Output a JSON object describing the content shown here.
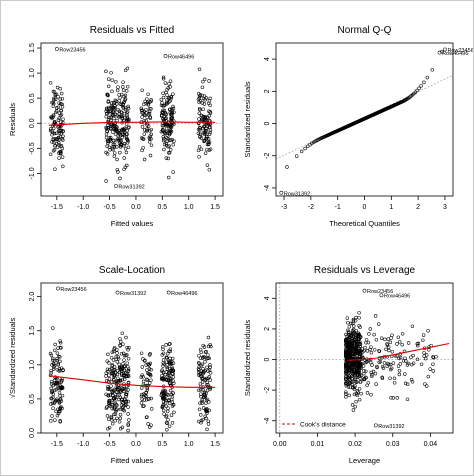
{
  "chart_data": [
    {
      "type": "scatter",
      "title": "Residuals vs Fitted",
      "xlabel": "Fitted values",
      "ylabel": "Residuals",
      "xlim": [
        -1.8,
        1.65
      ],
      "ylim": [
        -1.45,
        1.6
      ],
      "xticks": [
        -1.5,
        -1.0,
        -0.5,
        0.0,
        0.5,
        1.0,
        1.5
      ],
      "xticklabels": [
        "-1.5",
        "-1.0",
        "-0.5",
        "0.0",
        "0.5",
        "1.0",
        "1.5"
      ],
      "yticks": [
        -1.0,
        -0.5,
        0.0,
        0.5,
        1.0,
        1.5
      ],
      "yticklabels": [
        "-1.0",
        "-0.5",
        "0.0",
        "0.5",
        "1.0",
        "1.5"
      ],
      "clusters": [
        {
          "x_center": -1.5,
          "x_spread": 0.12,
          "count": 110,
          "y_sd": 0.38
        },
        {
          "x_center": -0.35,
          "x_spread": 0.22,
          "count": 230,
          "y_sd": 0.38
        },
        {
          "x_center": 0.2,
          "x_spread": 0.1,
          "count": 60,
          "y_sd": 0.3
        },
        {
          "x_center": 0.6,
          "x_spread": 0.12,
          "count": 140,
          "y_sd": 0.38
        },
        {
          "x_center": 1.3,
          "x_spread": 0.12,
          "count": 110,
          "y_sd": 0.35
        }
      ],
      "trend_line": {
        "color": "#dd0000",
        "x": [
          -1.65,
          -1.0,
          -0.4,
          0.0,
          0.6,
          1.0,
          1.5
        ],
        "y": [
          -0.04,
          0.0,
          0.02,
          0.02,
          0.03,
          0.02,
          0.02
        ]
      },
      "reference_line": {
        "y": 0.0,
        "style": "dotted",
        "color": "#999999"
      },
      "outliers": [
        {
          "label": "Row23456",
          "x": -1.5,
          "y": 1.48
        },
        {
          "label": "Row46496",
          "x": 0.56,
          "y": 1.34
        },
        {
          "label": "Row31392",
          "x": -0.38,
          "y": -1.25
        }
      ]
    },
    {
      "type": "scatter",
      "title": "Normal Q-Q",
      "xlabel": "Theoretical Quantiles",
      "ylabel": "Standardized residuals",
      "xlim": [
        -3.3,
        3.3
      ],
      "ylim": [
        -4.5,
        5.0
      ],
      "xticks": [
        -3,
        -2,
        -1,
        0,
        1,
        2,
        3
      ],
      "xticklabels": [
        "-3",
        "-2",
        "-1",
        "0",
        "1",
        "2",
        "3"
      ],
      "yticks": [
        -4,
        -2,
        0,
        2,
        4
      ],
      "yticklabels": [
        "-4",
        "-2",
        "0",
        "2",
        "4"
      ],
      "n_points": 260,
      "reference_line": {
        "x": [
          -3.3,
          3.3
        ],
        "y": [
          -2.2,
          3.0
        ],
        "style": "dotted",
        "color": "#999999"
      },
      "outliers": [
        {
          "label": "Row23456",
          "x": 3.0,
          "y": 4.6
        },
        {
          "label": "Row46496",
          "x": 2.8,
          "y": 4.4
        },
        {
          "label": "Row31392",
          "x": -3.1,
          "y": -4.3
        }
      ]
    },
    {
      "type": "scatter",
      "title": "Scale-Location",
      "xlabel": "Fitted values",
      "ylabel": "√Standardized residuals",
      "xlim": [
        -1.8,
        1.65
      ],
      "ylim": [
        0.0,
        2.2
      ],
      "xticks": [
        -1.5,
        -1.0,
        -0.5,
        0.0,
        0.5,
        1.0,
        1.5
      ],
      "xticklabels": [
        "-1.5",
        "-1.0",
        "-0.5",
        "0.0",
        "0.5",
        "1.0",
        "1.5"
      ],
      "yticks": [
        0.0,
        0.5,
        1.0,
        1.5,
        2.0
      ],
      "yticklabels": [
        "0.0",
        "0.5",
        "1.0",
        "1.5",
        "2.0"
      ],
      "clusters": [
        {
          "x_center": -1.5,
          "x_spread": 0.12,
          "count": 110
        },
        {
          "x_center": -0.35,
          "x_spread": 0.22,
          "count": 230
        },
        {
          "x_center": 0.2,
          "x_spread": 0.1,
          "count": 60
        },
        {
          "x_center": 0.6,
          "x_spread": 0.12,
          "count": 140
        },
        {
          "x_center": 1.3,
          "x_spread": 0.12,
          "count": 110
        }
      ],
      "trend_line": {
        "color": "#dd0000",
        "x": [
          -1.65,
          -1.0,
          -0.5,
          0.0,
          0.5,
          1.0,
          1.5
        ],
        "y": [
          0.84,
          0.78,
          0.73,
          0.7,
          0.68,
          0.67,
          0.67
        ]
      },
      "outliers": [
        {
          "label": "Row23456",
          "x": -1.48,
          "y": 2.12
        },
        {
          "label": "Row31392",
          "x": -0.35,
          "y": 2.06
        },
        {
          "label": "Row46496",
          "x": 0.62,
          "y": 2.06
        }
      ]
    },
    {
      "type": "scatter",
      "title": "Residuals vs Leverage",
      "xlabel": "Leverage",
      "ylabel": "Standardized residuals",
      "xlim": [
        -0.001,
        0.046
      ],
      "ylim": [
        -4.8,
        5.0
      ],
      "xticks": [
        0.0,
        0.01,
        0.02,
        0.03,
        0.04
      ],
      "xticklabels": [
        "0.00",
        "0.01",
        "0.02",
        "0.03",
        "0.04"
      ],
      "yticks": [
        -4,
        -2,
        0,
        2,
        4
      ],
      "yticklabels": [
        "-4",
        "-2",
        "0",
        "2",
        "4"
      ],
      "n_points": 600,
      "trend_line": {
        "color": "#dd0000",
        "x": [
          0.018,
          0.022,
          0.026,
          0.03,
          0.035,
          0.04,
          0.045
        ],
        "y": [
          -0.05,
          0.0,
          0.1,
          0.3,
          0.55,
          0.8,
          1.05
        ]
      },
      "reference_lines": [
        {
          "y": 0.0,
          "style": "dotted",
          "color": "#999999"
        },
        {
          "x": 0.0,
          "style": "dotted",
          "color": "#999999"
        }
      ],
      "legend": {
        "label": "Cook's distance",
        "color": "#dd0000",
        "style": "dashed",
        "position": "bottom-left"
      },
      "outliers": [
        {
          "label": "Row23456",
          "x": 0.0225,
          "y": 4.5
        },
        {
          "label": "Row46496",
          "x": 0.027,
          "y": 4.2
        },
        {
          "label": "Row31392",
          "x": 0.0255,
          "y": -4.3
        }
      ]
    }
  ]
}
